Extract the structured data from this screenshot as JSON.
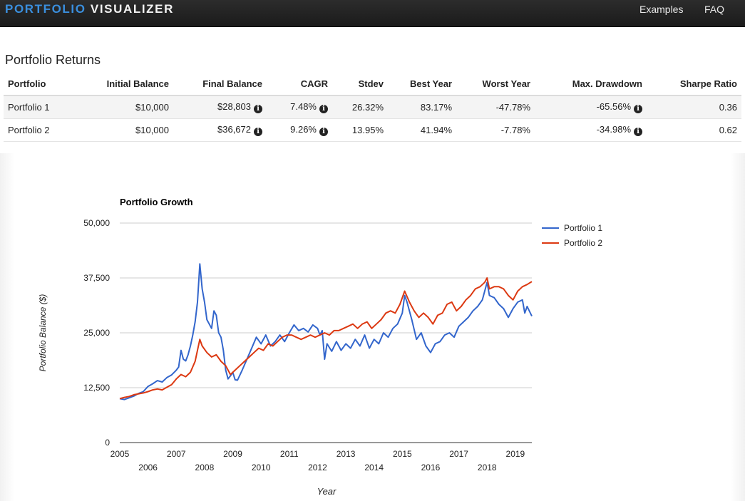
{
  "header": {
    "brand_part1": "PORTFOLIO",
    "brand_part2": "VISUALIZER",
    "nav": [
      {
        "label": "Examples"
      },
      {
        "label": "FAQ"
      }
    ]
  },
  "returns": {
    "title": "Portfolio Returns",
    "columns": [
      "Portfolio",
      "Initial Balance",
      "Final Balance",
      "CAGR",
      "Stdev",
      "Best Year",
      "Worst Year",
      "Max. Drawdown",
      "Sharpe Ratio"
    ],
    "rows": [
      {
        "portfolio": "Portfolio 1",
        "initial": "$10,000",
        "final": "$28,803",
        "cagr": "7.48%",
        "stdev": "26.32%",
        "best": "83.17%",
        "worst": "-47.78%",
        "drawdown": "-65.56%",
        "sharpe": "0.36"
      },
      {
        "portfolio": "Portfolio 2",
        "initial": "$10,000",
        "final": "$36,672",
        "cagr": "9.26%",
        "stdev": "13.95%",
        "best": "41.94%",
        "worst": "-7.78%",
        "drawdown": "-34.98%",
        "sharpe": "0.62"
      }
    ]
  },
  "chart_data": {
    "type": "line",
    "title": "Portfolio Growth",
    "xlabel": "Year",
    "ylabel": "Portfolio Balance ($)",
    "ylim": [
      0,
      50000
    ],
    "xlim": [
      "2005-01",
      "2019-08"
    ],
    "y_ticks": [
      "0",
      "12,500",
      "25,000",
      "37,500",
      "50,000"
    ],
    "y_tick_values": [
      0,
      12500,
      25000,
      37500,
      50000
    ],
    "x_ticks": [
      "2005",
      "2006",
      "2007",
      "2008",
      "2009",
      "2010",
      "2011",
      "2012",
      "2013",
      "2014",
      "2015",
      "2016",
      "2017",
      "2018",
      "2019"
    ],
    "grid": true,
    "legend_position": "top-right",
    "series": [
      {
        "name": "Portfolio 1",
        "color": "#3366cc",
        "points": [
          [
            "2005-01",
            10000
          ],
          [
            "2005-03",
            9800
          ],
          [
            "2005-05",
            10200
          ],
          [
            "2005-07",
            10600
          ],
          [
            "2005-09",
            11200
          ],
          [
            "2005-11",
            11600
          ],
          [
            "2006-01",
            12800
          ],
          [
            "2006-03",
            13400
          ],
          [
            "2006-05",
            14100
          ],
          [
            "2006-07",
            13800
          ],
          [
            "2006-09",
            14800
          ],
          [
            "2006-11",
            15400
          ],
          [
            "2007-01",
            16500
          ],
          [
            "2007-02",
            17200
          ],
          [
            "2007-03",
            21000
          ],
          [
            "2007-04",
            19000
          ],
          [
            "2007-05",
            18600
          ],
          [
            "2007-06",
            20000
          ],
          [
            "2007-07",
            22000
          ],
          [
            "2007-08",
            24500
          ],
          [
            "2007-09",
            27500
          ],
          [
            "2007-10",
            32000
          ],
          [
            "2007-11",
            40700
          ],
          [
            "2007-12",
            35000
          ],
          [
            "2008-01",
            32000
          ],
          [
            "2008-02",
            28000
          ],
          [
            "2008-03",
            27000
          ],
          [
            "2008-04",
            26000
          ],
          [
            "2008-05",
            30000
          ],
          [
            "2008-06",
            29000
          ],
          [
            "2008-07",
            25000
          ],
          [
            "2008-08",
            24000
          ],
          [
            "2008-09",
            21000
          ],
          [
            "2008-10",
            16500
          ],
          [
            "2008-11",
            14500
          ],
          [
            "2008-12",
            15200
          ],
          [
            "2009-01",
            16000
          ],
          [
            "2009-02",
            14300
          ],
          [
            "2009-03",
            14200
          ],
          [
            "2009-05",
            16500
          ],
          [
            "2009-07",
            19000
          ],
          [
            "2009-09",
            21500
          ],
          [
            "2009-11",
            24000
          ],
          [
            "2010-01",
            22500
          ],
          [
            "2010-03",
            24500
          ],
          [
            "2010-05",
            22000
          ],
          [
            "2010-07",
            23000
          ],
          [
            "2010-09",
            24500
          ],
          [
            "2010-11",
            23000
          ],
          [
            "2011-01",
            25000
          ],
          [
            "2011-03",
            26800
          ],
          [
            "2011-05",
            25500
          ],
          [
            "2011-07",
            26000
          ],
          [
            "2011-09",
            25200
          ],
          [
            "2011-11",
            26800
          ],
          [
            "2012-01",
            26000
          ],
          [
            "2012-02",
            24500
          ],
          [
            "2012-03",
            25500
          ],
          [
            "2012-04",
            19000
          ],
          [
            "2012-05",
            22500
          ],
          [
            "2012-07",
            20800
          ],
          [
            "2012-09",
            23000
          ],
          [
            "2012-11",
            21000
          ],
          [
            "2013-01",
            22500
          ],
          [
            "2013-03",
            21500
          ],
          [
            "2013-05",
            23500
          ],
          [
            "2013-07",
            22000
          ],
          [
            "2013-09",
            24500
          ],
          [
            "2013-11",
            21500
          ],
          [
            "2014-01",
            23500
          ],
          [
            "2014-03",
            22500
          ],
          [
            "2014-05",
            25000
          ],
          [
            "2014-07",
            24000
          ],
          [
            "2014-09",
            26000
          ],
          [
            "2014-11",
            27000
          ],
          [
            "2015-01",
            29500
          ],
          [
            "2015-02",
            33500
          ],
          [
            "2015-03",
            32000
          ],
          [
            "2015-05",
            28000
          ],
          [
            "2015-07",
            23500
          ],
          [
            "2015-09",
            25000
          ],
          [
            "2015-11",
            22000
          ],
          [
            "2016-01",
            20500
          ],
          [
            "2016-03",
            22500
          ],
          [
            "2016-05",
            23000
          ],
          [
            "2016-07",
            24500
          ],
          [
            "2016-09",
            25000
          ],
          [
            "2016-11",
            24000
          ],
          [
            "2017-01",
            26500
          ],
          [
            "2017-03",
            27500
          ],
          [
            "2017-05",
            28500
          ],
          [
            "2017-07",
            30000
          ],
          [
            "2017-09",
            31000
          ],
          [
            "2017-11",
            32500
          ],
          [
            "2018-01",
            36500
          ],
          [
            "2018-02",
            33500
          ],
          [
            "2018-04",
            33000
          ],
          [
            "2018-06",
            31500
          ],
          [
            "2018-08",
            30500
          ],
          [
            "2018-10",
            28500
          ],
          [
            "2018-12",
            30500
          ],
          [
            "2019-02",
            32000
          ],
          [
            "2019-04",
            32500
          ],
          [
            "2019-05",
            29500
          ],
          [
            "2019-06",
            31000
          ],
          [
            "2019-08",
            28803
          ]
        ]
      },
      {
        "name": "Portfolio 2",
        "color": "#dc3912",
        "points": [
          [
            "2005-01",
            10000
          ],
          [
            "2005-03",
            10300
          ],
          [
            "2005-05",
            10500
          ],
          [
            "2005-07",
            10900
          ],
          [
            "2005-09",
            11100
          ],
          [
            "2005-11",
            11300
          ],
          [
            "2006-01",
            11600
          ],
          [
            "2006-03",
            12000
          ],
          [
            "2006-05",
            12200
          ],
          [
            "2006-07",
            12000
          ],
          [
            "2006-09",
            12600
          ],
          [
            "2006-11",
            13200
          ],
          [
            "2007-01",
            14500
          ],
          [
            "2007-03",
            15500
          ],
          [
            "2007-05",
            15000
          ],
          [
            "2007-07",
            16000
          ],
          [
            "2007-09",
            18500
          ],
          [
            "2007-10",
            21000
          ],
          [
            "2007-11",
            23500
          ],
          [
            "2007-12",
            22000
          ],
          [
            "2008-02",
            20500
          ],
          [
            "2008-04",
            19500
          ],
          [
            "2008-06",
            20000
          ],
          [
            "2008-08",
            18500
          ],
          [
            "2008-10",
            17500
          ],
          [
            "2008-12",
            15500
          ],
          [
            "2009-02",
            16500
          ],
          [
            "2009-04",
            17500
          ],
          [
            "2009-06",
            18500
          ],
          [
            "2009-08",
            19500
          ],
          [
            "2009-10",
            20500
          ],
          [
            "2009-12",
            21500
          ],
          [
            "2010-02",
            21000
          ],
          [
            "2010-04",
            22500
          ],
          [
            "2010-06",
            22000
          ],
          [
            "2010-08",
            23000
          ],
          [
            "2010-10",
            24000
          ],
          [
            "2010-12",
            24500
          ],
          [
            "2011-02",
            24500
          ],
          [
            "2011-04",
            24000
          ],
          [
            "2011-06",
            23500
          ],
          [
            "2011-08",
            24000
          ],
          [
            "2011-10",
            24500
          ],
          [
            "2011-12",
            24000
          ],
          [
            "2012-02",
            24500
          ],
          [
            "2012-04",
            25000
          ],
          [
            "2012-06",
            24500
          ],
          [
            "2012-08",
            25500
          ],
          [
            "2012-10",
            25500
          ],
          [
            "2012-12",
            26000
          ],
          [
            "2013-02",
            26500
          ],
          [
            "2013-04",
            27000
          ],
          [
            "2013-06",
            26000
          ],
          [
            "2013-08",
            27000
          ],
          [
            "2013-10",
            27500
          ],
          [
            "2013-12",
            26000
          ],
          [
            "2014-02",
            27000
          ],
          [
            "2014-04",
            28000
          ],
          [
            "2014-06",
            29500
          ],
          [
            "2014-08",
            30000
          ],
          [
            "2014-10",
            29500
          ],
          [
            "2014-12",
            31500
          ],
          [
            "2015-02",
            34500
          ],
          [
            "2015-04",
            32000
          ],
          [
            "2015-06",
            30000
          ],
          [
            "2015-08",
            28500
          ],
          [
            "2015-10",
            29500
          ],
          [
            "2015-12",
            28500
          ],
          [
            "2016-02",
            27000
          ],
          [
            "2016-04",
            29000
          ],
          [
            "2016-06",
            29500
          ],
          [
            "2016-08",
            31500
          ],
          [
            "2016-10",
            32000
          ],
          [
            "2016-12",
            30000
          ],
          [
            "2017-02",
            31000
          ],
          [
            "2017-04",
            32500
          ],
          [
            "2017-06",
            33500
          ],
          [
            "2017-08",
            35000
          ],
          [
            "2017-10",
            35500
          ],
          [
            "2017-12",
            36500
          ],
          [
            "2018-01",
            37500
          ],
          [
            "2018-02",
            35000
          ],
          [
            "2018-04",
            35500
          ],
          [
            "2018-06",
            35500
          ],
          [
            "2018-08",
            35000
          ],
          [
            "2018-10",
            33500
          ],
          [
            "2018-12",
            32500
          ],
          [
            "2019-02",
            34500
          ],
          [
            "2019-04",
            35500
          ],
          [
            "2019-06",
            36000
          ],
          [
            "2019-08",
            36672
          ]
        ]
      }
    ]
  }
}
